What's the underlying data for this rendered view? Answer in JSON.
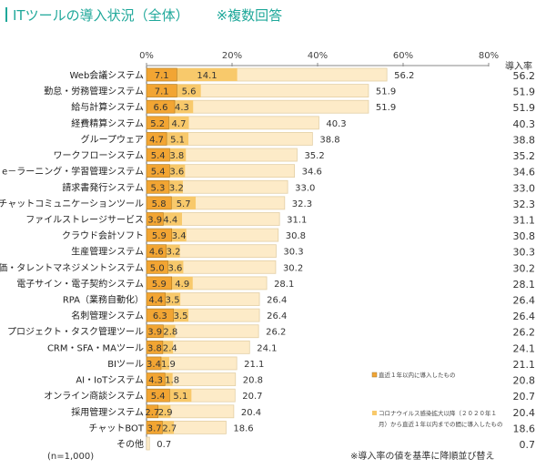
{
  "header": {
    "title": "ITツールの導入状況（全体）",
    "note": "※複数回答"
  },
  "chart_data": {
    "type": "bar",
    "orientation": "horizontal",
    "stacked_overlay": true,
    "title": "ITツールの導入状況（全体）",
    "subtitle": "※複数回答",
    "xlabel": "",
    "ylabel": "",
    "xlim": [
      0,
      80
    ],
    "xticks": [
      0,
      20,
      40,
      60,
      80
    ],
    "xtick_labels": [
      "0%",
      "20%",
      "40%",
      "60%",
      "80%"
    ],
    "grid": false,
    "legend_position": "bottom-right",
    "rate_column_header": "導入率",
    "categories": [
      "Web会議システム",
      "勤怠・労務管理システム",
      "給与計算システム",
      "経費精算システム",
      "グループウェア",
      "ワークフローシステム",
      "e－ラーニング・学習管理システム",
      "請求書発行システム",
      "チャットコミュニケーションツール",
      "ファイルストレージサービス",
      "クラウド会計ソフト",
      "生産管理システム",
      "人事評価・タレントマネジメントシステム",
      "電子サイン・電子契約システム",
      "RPA（業務自動化）",
      "名刺管理システム",
      "プロジェクト・タスク管理ツール",
      "CRM・SFA・MAツール",
      "BIツール",
      "AI・IoTシステム",
      "オンライン商談システム",
      "採用管理システム",
      "チャットBOT",
      "その他"
    ],
    "series": [
      {
        "name": "直近１年以内に導入したもの",
        "color": "#f2a533",
        "values": [
          7.1,
          7.1,
          6.6,
          5.2,
          4.7,
          5.4,
          5.4,
          5.3,
          5.8,
          3.9,
          5.9,
          4.6,
          5.0,
          5.9,
          4.4,
          6.3,
          3.9,
          3.8,
          3.4,
          4.3,
          5.4,
          2.7,
          3.7,
          null
        ]
      },
      {
        "name": "コロナウイルス感染拡大以降（２０２０年１月）から直近１年以内までの間に導入したもの",
        "color": "#f8c96b",
        "values": [
          14.1,
          5.6,
          4.3,
          4.7,
          5.1,
          3.8,
          3.6,
          3.2,
          5.7,
          4.4,
          3.4,
          3.2,
          3.6,
          4.9,
          3.5,
          3.5,
          2.8,
          2.4,
          1.9,
          1.8,
          5.1,
          2.9,
          2.7,
          null
        ]
      },
      {
        "name": "導入率",
        "color": "#fdebc8",
        "values": [
          56.2,
          51.9,
          51.9,
          40.3,
          38.8,
          35.2,
          34.6,
          33.0,
          32.3,
          31.1,
          30.8,
          30.3,
          30.2,
          28.1,
          26.4,
          26.4,
          26.2,
          24.1,
          21.1,
          20.8,
          20.7,
          20.4,
          18.6,
          0.7
        ]
      }
    ],
    "rate_column": [
      "56.2",
      "51.9",
      "51.9",
      "40.3",
      "38.8",
      "35.2",
      "34.6",
      "33.0",
      "32.3",
      "31.1",
      "30.8",
      "30.3",
      "30.2",
      "28.1",
      "26.4",
      "26.4",
      "26.2",
      "24.1",
      "21.1",
      "20.8",
      "20.7",
      "20.4",
      "18.6",
      "0.7"
    ],
    "annotations": [
      "(n=1,000)",
      "※導入率の値を基準に降順並び替え"
    ]
  },
  "legend": {
    "item1": "直近１年以内に導入したもの",
    "item2_line1": "コロナウイルス感染拡大以降（２０２０年１",
    "item2_line2": "月）から直近１年以内までの間に導入したもの"
  },
  "footer": {
    "sample": "(n=1,000)",
    "sort_note": "※導入率の値を基準に降順並び替え"
  }
}
